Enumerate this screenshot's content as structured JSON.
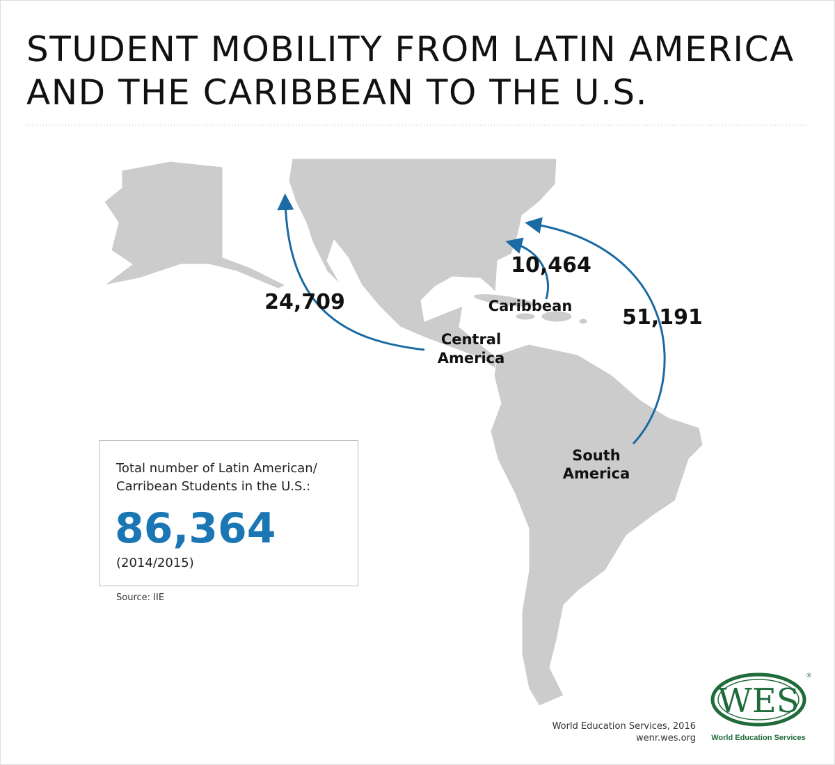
{
  "title": {
    "lines": [
      "STUDENT MOBILITY FROM LATIN AMERICA",
      "AND THE CARIBBEAN TO THE U.S."
    ]
  },
  "flows": [
    {
      "region": [
        "Central",
        "America"
      ],
      "value": 24709,
      "label": "24,709"
    },
    {
      "region": [
        "Caribbean"
      ],
      "value": 10464,
      "label": "10,464"
    },
    {
      "region": [
        "South",
        "America"
      ],
      "value": 51191,
      "label": "51,191"
    }
  ],
  "total_box": {
    "caption": [
      "Total number of Latin American/",
      "Carribean Students in the U.S.:"
    ],
    "total": {
      "value": 86364,
      "label": "86,364"
    },
    "period": "(2014/2015)"
  },
  "source": "Source: IIE",
  "footer": {
    "credit": "World Education Services, 2016",
    "url": "wenr.wes.org"
  },
  "logo": {
    "mark": "WES",
    "registered": "®",
    "name": "World Education Services"
  }
}
